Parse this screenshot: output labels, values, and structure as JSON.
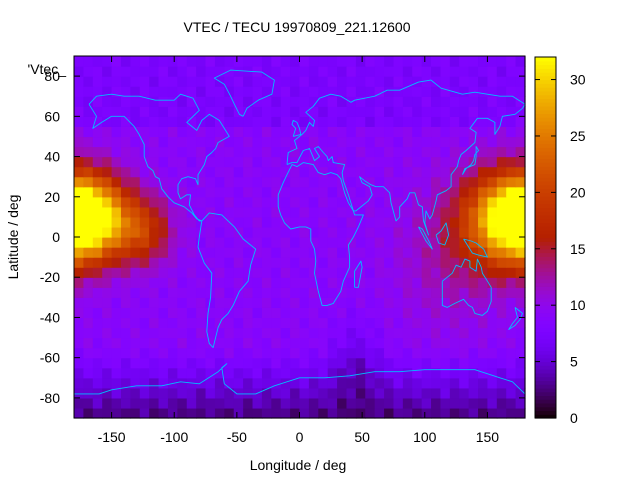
{
  "chart_data": {
    "type": "heatmap",
    "title": "VTEC / TECU 19970809_221.12600",
    "xlabel": "Longitude / deg",
    "ylabel": "Latitude / deg",
    "key_label": "'Vtec_",
    "xlim": [
      -180,
      180
    ],
    "ylim": [
      -90,
      90
    ],
    "xticks": [
      -150,
      -100,
      -50,
      0,
      50,
      100,
      150
    ],
    "yticks": [
      -80,
      -60,
      -40,
      -20,
      0,
      20,
      40,
      60,
      80
    ],
    "colorbar": {
      "min": 0,
      "max": 32,
      "ticks": [
        0,
        5,
        10,
        15,
        20,
        25,
        30
      ],
      "palette": "black-purple-red-orange-yellow"
    },
    "grid": {
      "lon_step": 7.5,
      "lat_step": 5,
      "lon_start": -180,
      "lat_start": -90
    },
    "field_features": {
      "background_tecu": 9,
      "peaks": [
        {
          "region": "western-pacific",
          "lon": 165,
          "lat": 10,
          "tecu": 30
        },
        {
          "region": "central-pacific",
          "lon": -165,
          "lat": 10,
          "tecu": 29
        },
        {
          "region": "eastern-pacific",
          "lon": -125,
          "lat": 5,
          "tecu": 18
        }
      ],
      "lows": [
        {
          "region": "antarctic",
          "lat": -80,
          "tecu": 2
        },
        {
          "region": "south-indian-ocean",
          "lon": 45,
          "lat": -60,
          "tecu": 4
        }
      ]
    },
    "overlay": "coastlines"
  },
  "colors": {
    "coastline": "#00bfff",
    "frame": "#000000",
    "background": "#ffffff"
  }
}
